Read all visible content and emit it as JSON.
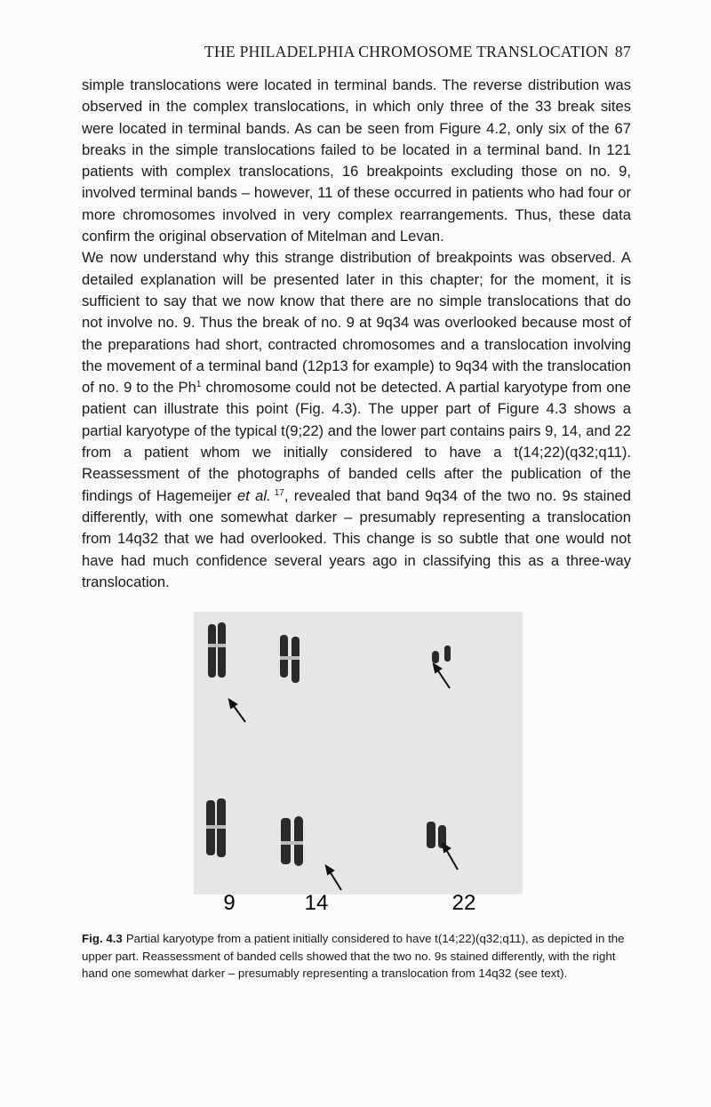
{
  "header": {
    "title": "THE PHILADELPHIA CHROMOSOME TRANSLOCATION",
    "page_number": "87"
  },
  "body": {
    "paragraph_1": "simple translocations were located in terminal bands. The reverse distribution was observed in the complex translocations, in which only three of the 33 break sites were located in terminal bands. As can be seen from Figure 4.2, only six of the 67 breaks in the simple translocations failed to be located in a terminal band. In 121 patients with complex translocations, 16 breakpoints excluding those on no. 9, involved terminal bands – however, 11 of these occurred in patients who had four or more chromosomes involved in very complex rearrangements. Thus, these data confirm the original observation of Mitelman and Levan.",
    "paragraph_2": {
      "part_1": "We now understand why this strange distribution of breakpoints was observed. A detailed explanation will be presented later in this chapter; for the moment, it is sufficient to say that we now know that there are no simple translocations that do not involve no. 9. Thus the break of no. 9 at 9q34 was overlooked because most of the preparations had short, contracted chromosomes and a translocation involving the movement of a terminal band (12p13 for example) to 9q34 with the translocation of no. 9 to the Ph",
      "superscript_1": "1",
      "part_2": " chromosome could not be detected. A partial karyotype from one patient can illustrate this point (Fig. 4.3). The upper part of Figure 4.3 shows a partial karyotype of the typical t(9;22) and the lower part contains pairs 9, 14, and 22 from a patient whom we initially considered to have a t(14;22)(q32;q11). Reassessment of the photographs of banded cells after the publication of the findings of Hagemeijer ",
      "italic": "et al.",
      "superscript_2": "17",
      "part_3": ", revealed that band 9q34 of the two no. 9s stained differently, with one somewhat darker – presumably representing a translocation from 14q32 that we had overlooked. This change is so subtle that one would not have had much confidence several years ago in classifying this as a three-way translocation."
    }
  },
  "figure": {
    "labels": [
      "9",
      "14",
      "22"
    ],
    "caption": {
      "label": "Fig. 4.3",
      "text": "Partial karyotype from a patient initially considered to have t(14;22)(q32;q11), as depicted in the upper part. Reassessment of banded cells showed that the two no. 9s stained differently, with the right hand one somewhat darker – presumably representing a translocation from 14q32 (see text)."
    }
  }
}
